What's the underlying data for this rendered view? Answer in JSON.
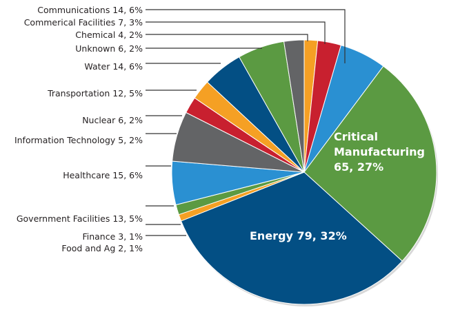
{
  "chart_data": {
    "type": "pie",
    "title": "",
    "start": "top",
    "direction": "clockwise",
    "slices": [
      {
        "name": "Chemical",
        "value": 4,
        "percent": "2%",
        "label": "Chemical 4, 2%",
        "color": "#f5a024"
      },
      {
        "name": "Commerical Facilities",
        "value": 7,
        "percent": "3%",
        "label": "Commerical Facilities 7, 3%",
        "color": "#c8202f"
      },
      {
        "name": "Communications",
        "value": 14,
        "percent": "6%",
        "label": "Communications 14, 6%",
        "color": "#2a90d2"
      },
      {
        "name": "Critical Manufacturing",
        "value": 65,
        "percent": "27%",
        "label_lines": [
          "Critical",
          "Manufacturing",
          "65, 27%"
        ],
        "color": "#5b9a42"
      },
      {
        "name": "Energy",
        "value": 79,
        "percent": "32%",
        "label": "Energy 79, 32%",
        "color": "#034f84"
      },
      {
        "name": "Food and Ag",
        "value": 2,
        "percent": "1%",
        "label": "Food and Ag 2, 1%",
        "color": "#f5a024"
      },
      {
        "name": "Finance",
        "value": 3,
        "percent": "1%",
        "label": "Finance 3, 1%",
        "color": "#5b9a42"
      },
      {
        "name": "Government Facilities",
        "value": 13,
        "percent": "5%",
        "label": "Government Facilities 13, 5%",
        "color": "#2a90d2"
      },
      {
        "name": "Healthcare",
        "value": 15,
        "percent": "6%",
        "label": "Healthcare 15, 6%",
        "color": "#636466"
      },
      {
        "name": "Information Technology",
        "value": 5,
        "percent": "2%",
        "label": "Information Technology 5, 2%",
        "color": "#c8202f"
      },
      {
        "name": "Nuclear",
        "value": 6,
        "percent": "2%",
        "label": "Nuclear 6, 2%",
        "color": "#f5a024"
      },
      {
        "name": "Transportation",
        "value": 12,
        "percent": "5%",
        "label": "Transportation 12, 5%",
        "color": "#034f84"
      },
      {
        "name": "Water",
        "value": 14,
        "percent": "6%",
        "label": "Water 14, 6%",
        "color": "#5b9a42"
      },
      {
        "name": "Unknown",
        "value": 6,
        "percent": "2%",
        "label": "Unknown 6, 2%",
        "color": "#636466"
      }
    ]
  }
}
